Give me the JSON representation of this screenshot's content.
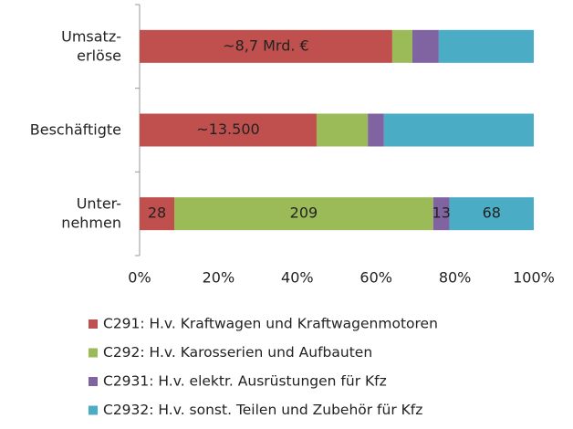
{
  "chart_data": {
    "type": "bar",
    "orientation": "horizontal",
    "stacked": true,
    "categories": [
      [
        "Umsatz-",
        "erlöse"
      ],
      [
        "Beschäftigte"
      ],
      [
        "Unter-",
        "nehmen"
      ]
    ],
    "series": [
      {
        "name": "C291: H.v. Kraftwagen und Kraftwagenmotoren",
        "color": "#c0504d",
        "values": [
          64.1,
          44.9,
          8.8
        ],
        "labels": [
          "~8,7 Mrd. €",
          "~13.500",
          "28"
        ]
      },
      {
        "name": "C292: H.v. Karosserien und Aufbauten",
        "color": "#9bbb59",
        "values": [
          5.1,
          13.0,
          65.7
        ],
        "labels": [
          null,
          null,
          "209"
        ]
      },
      {
        "name": "C2931: H.v. elektr. Ausrüstungen für Kfz",
        "color": "#8064a2",
        "values": [
          6.7,
          4.1,
          4.1
        ],
        "labels": [
          null,
          null,
          "13"
        ]
      },
      {
        "name": "C2932: H.v. sonst. Teilen und Zubehör für Kfz",
        "color": "#4bacc6",
        "values": [
          24.1,
          38.0,
          21.4
        ],
        "labels": [
          null,
          null,
          "68"
        ]
      }
    ],
    "xlim": [
      0,
      100
    ],
    "xticks": [
      {
        "value": 0,
        "label": "0%"
      },
      {
        "value": 20,
        "label": "20%"
      },
      {
        "value": 40,
        "label": "40%"
      },
      {
        "value": 60,
        "label": "60%"
      },
      {
        "value": 80,
        "label": "80%"
      },
      {
        "value": 100,
        "label": "100%"
      }
    ],
    "legend": "bottom"
  }
}
